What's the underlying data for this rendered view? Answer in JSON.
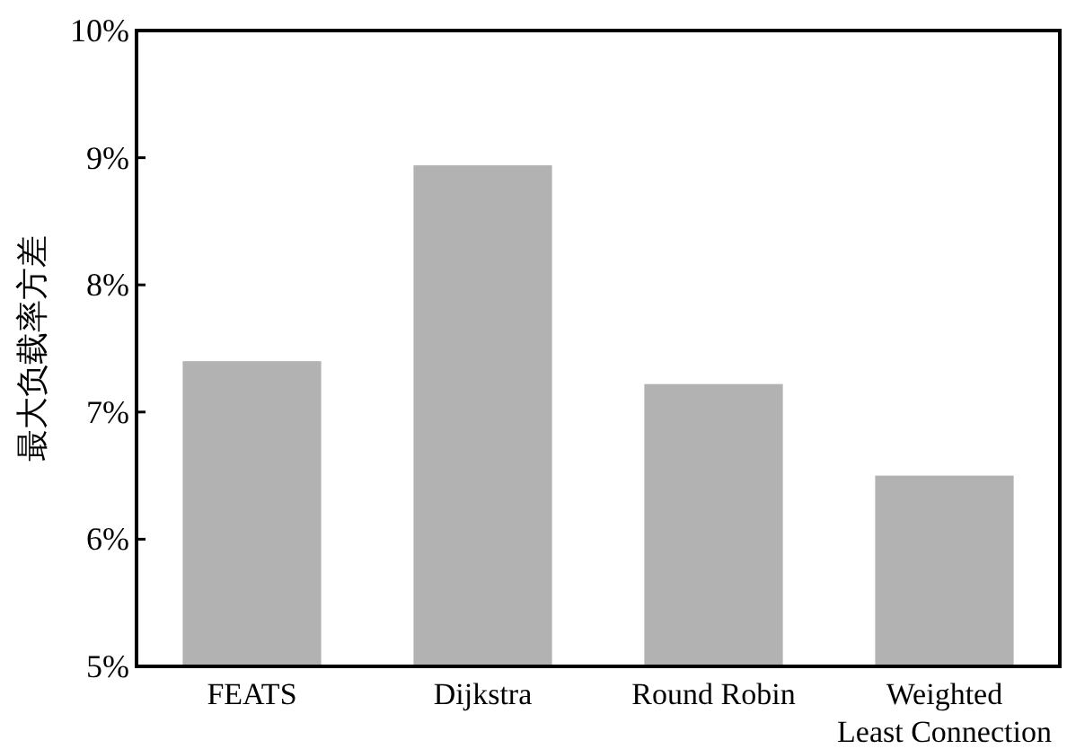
{
  "chart_data": {
    "type": "bar",
    "ylabel": "最大负载率方差",
    "categories": [
      "FEATS",
      "Dijkstra",
      "Round Robin",
      "Weighted\nLeast Connection"
    ],
    "values": [
      7.4,
      8.94,
      7.22,
      6.5
    ],
    "color": "#b2b2b2",
    "ylim": [
      5,
      10
    ],
    "yticks": [
      {
        "value": 5,
        "label": "5%"
      },
      {
        "value": 6,
        "label": "6%"
      },
      {
        "value": 7,
        "label": "7%"
      },
      {
        "value": 8,
        "label": "8%"
      },
      {
        "value": 9,
        "label": "9%"
      },
      {
        "value": 10,
        "label": "10%"
      }
    ],
    "grid": false
  }
}
